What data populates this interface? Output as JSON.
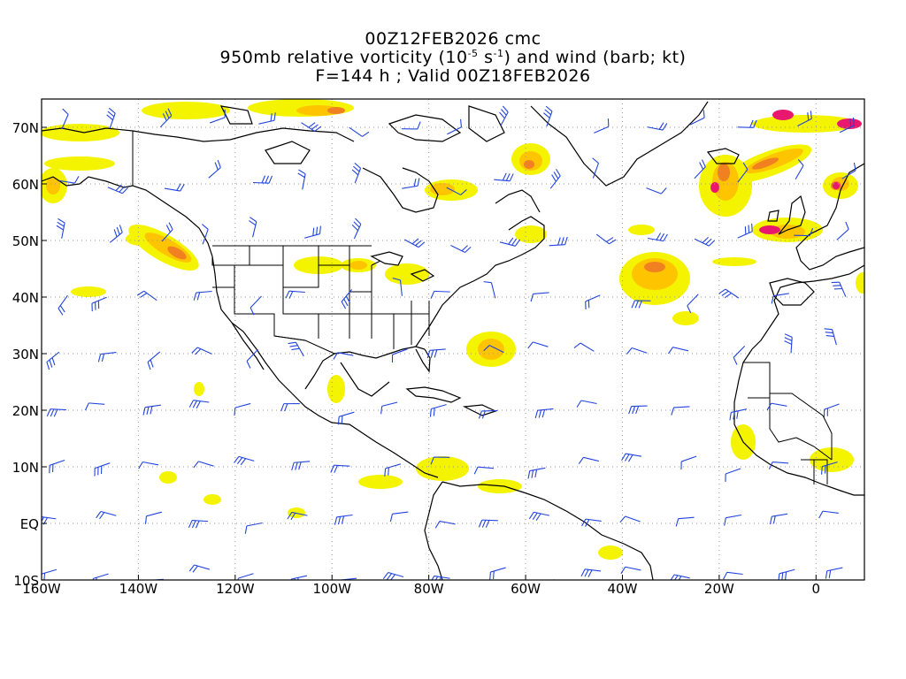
{
  "title": {
    "line1": "00Z12FEB2026 cmc",
    "line2_pre": "950mb relative vorticity (10",
    "line2_exp1": "-5",
    "line2_mid": " s",
    "line2_exp2": "-1",
    "line2_post": ") and wind (barb; kt)",
    "line3": "F=144 h ; Valid 00Z18FEB2026"
  },
  "map": {
    "lon_range": [
      -160,
      10
    ],
    "lat_range": [
      -10,
      75
    ],
    "lon_ticks": [
      {
        "value": -160,
        "label": "160W"
      },
      {
        "value": -140,
        "label": "140W"
      },
      {
        "value": -120,
        "label": "120W"
      },
      {
        "value": -100,
        "label": "100W"
      },
      {
        "value": -80,
        "label": "80W"
      },
      {
        "value": -60,
        "label": "60W"
      },
      {
        "value": -40,
        "label": "40W"
      },
      {
        "value": -20,
        "label": "20W"
      },
      {
        "value": 0,
        "label": "0"
      }
    ],
    "lat_ticks": [
      {
        "value": -10,
        "label": "10S"
      },
      {
        "value": 0,
        "label": "EQ"
      },
      {
        "value": 10,
        "label": "10N"
      },
      {
        "value": 20,
        "label": "20N"
      },
      {
        "value": 30,
        "label": "30N"
      },
      {
        "value": 40,
        "label": "40N"
      },
      {
        "value": 50,
        "label": "50N"
      },
      {
        "value": 60,
        "label": "60N"
      },
      {
        "value": 70,
        "label": "70N"
      }
    ],
    "colors": {
      "shade_low": "#f4f400",
      "shade_mid": "#ffc400",
      "shade_high": "#f08020",
      "shade_max": "#e8186e",
      "barb": "#2244dd",
      "coast": "#000000",
      "grid": "#999999"
    }
  }
}
